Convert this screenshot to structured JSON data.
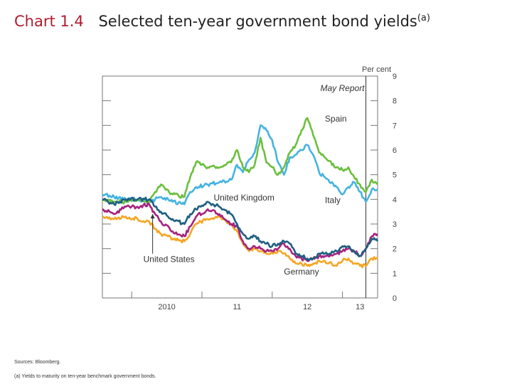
{
  "title": {
    "number": "Chart 1.4",
    "text": "Selected ten-year government bond yields",
    "superscript": "(a)"
  },
  "source": "Sources: Bloomberg.",
  "footnote": "(a) Yields to maturity on ten-year benchmark government bonds.",
  "chart_data": {
    "type": "line",
    "ylabel": "Per cent",
    "ylim": [
      0,
      9
    ],
    "yticks": [
      "0",
      "1",
      "2",
      "3",
      "4",
      "5",
      "6",
      "7",
      "8",
      "9"
    ],
    "x_range": [
      "2009-08",
      "2013-07"
    ],
    "x_ticks": [
      {
        "label": "2010",
        "x": "2010-07"
      },
      {
        "label": "11",
        "x": "2011-07"
      },
      {
        "label": "12",
        "x": "2012-07"
      },
      {
        "label": "13",
        "x": "2013-04"
      }
    ],
    "x_year_boundaries": [
      "2010-01",
      "2011-01",
      "2012-01",
      "2013-01"
    ],
    "grid": false,
    "colors": {
      "Spain": "#6cbf3e",
      "Italy": "#45b3e0",
      "United Kingdom": "#1f5f82",
      "United States": "#a5247f",
      "Germany": "#f5a623"
    },
    "annotations": [
      {
        "text": "May Report",
        "x": "2013-05",
        "type": "vertical-line"
      }
    ],
    "series": [
      {
        "name": "Spain",
        "x": [
          "2009-08",
          "2009-10",
          "2009-12",
          "2010-02",
          "2010-04",
          "2010-05",
          "2010-06",
          "2010-08",
          "2010-10",
          "2010-11",
          "2010-12",
          "2011-02",
          "2011-04",
          "2011-06",
          "2011-07",
          "2011-08",
          "2011-09",
          "2011-10",
          "2011-11",
          "2011-12",
          "2012-01",
          "2012-02",
          "2012-03",
          "2012-04",
          "2012-05",
          "2012-06",
          "2012-07",
          "2012-08",
          "2012-09",
          "2012-10",
          "2012-12",
          "2013-01",
          "2013-02",
          "2013-03",
          "2013-04",
          "2013-05",
          "2013-06",
          "2013-07"
        ],
        "values": [
          4.0,
          3.9,
          3.9,
          4.0,
          3.9,
          4.3,
          4.6,
          4.2,
          4.1,
          4.9,
          5.5,
          5.3,
          5.3,
          5.5,
          6.0,
          5.3,
          5.1,
          5.4,
          6.5,
          5.5,
          5.3,
          5.0,
          5.3,
          5.9,
          6.2,
          6.8,
          7.3,
          6.6,
          5.9,
          5.7,
          5.3,
          5.2,
          5.3,
          4.9,
          4.6,
          4.3,
          4.8,
          4.6
        ]
      },
      {
        "name": "Italy",
        "x": [
          "2009-08",
          "2009-10",
          "2009-12",
          "2010-02",
          "2010-04",
          "2010-05",
          "2010-06",
          "2010-08",
          "2010-10",
          "2010-11",
          "2010-12",
          "2011-02",
          "2011-04",
          "2011-06",
          "2011-07",
          "2011-08",
          "2011-09",
          "2011-10",
          "2011-11",
          "2011-12",
          "2012-01",
          "2012-02",
          "2012-03",
          "2012-04",
          "2012-05",
          "2012-06",
          "2012-07",
          "2012-08",
          "2012-09",
          "2012-10",
          "2012-12",
          "2013-01",
          "2013-02",
          "2013-03",
          "2013-04",
          "2013-05",
          "2013-06",
          "2013-07"
        ],
        "values": [
          4.2,
          4.1,
          4.0,
          4.0,
          3.9,
          4.0,
          4.1,
          3.9,
          3.8,
          4.3,
          4.5,
          4.6,
          4.7,
          4.8,
          5.4,
          5.1,
          5.6,
          5.9,
          7.0,
          6.8,
          6.4,
          5.5,
          5.0,
          5.7,
          5.8,
          6.0,
          6.2,
          5.8,
          5.1,
          4.9,
          4.5,
          4.2,
          4.5,
          4.7,
          4.3,
          3.9,
          4.4,
          4.4
        ]
      },
      {
        "name": "United Kingdom",
        "x": [
          "2009-08",
          "2009-10",
          "2009-12",
          "2010-02",
          "2010-04",
          "2010-05",
          "2010-06",
          "2010-08",
          "2010-10",
          "2010-11",
          "2010-12",
          "2011-02",
          "2011-04",
          "2011-06",
          "2011-07",
          "2011-08",
          "2011-09",
          "2011-10",
          "2011-11",
          "2011-12",
          "2012-01",
          "2012-02",
          "2012-03",
          "2012-04",
          "2012-05",
          "2012-06",
          "2012-07",
          "2012-08",
          "2012-09",
          "2012-10",
          "2012-12",
          "2013-01",
          "2013-02",
          "2013-03",
          "2013-04",
          "2013-05",
          "2013-06",
          "2013-07"
        ],
        "values": [
          4.0,
          3.8,
          4.0,
          4.0,
          4.0,
          3.7,
          3.5,
          3.2,
          3.0,
          3.4,
          3.6,
          3.9,
          3.7,
          3.4,
          3.0,
          2.6,
          2.4,
          2.5,
          2.3,
          2.2,
          2.1,
          2.2,
          2.3,
          2.2,
          1.8,
          1.7,
          1.6,
          1.6,
          1.8,
          1.8,
          1.9,
          2.1,
          2.1,
          1.9,
          1.7,
          2.0,
          2.4,
          2.3
        ]
      },
      {
        "name": "United States",
        "x": [
          "2009-08",
          "2009-10",
          "2009-12",
          "2010-02",
          "2010-04",
          "2010-05",
          "2010-06",
          "2010-08",
          "2010-10",
          "2010-11",
          "2010-12",
          "2011-02",
          "2011-04",
          "2011-06",
          "2011-07",
          "2011-08",
          "2011-09",
          "2011-10",
          "2011-11",
          "2011-12",
          "2012-01",
          "2012-02",
          "2012-03",
          "2012-04",
          "2012-05",
          "2012-06",
          "2012-07",
          "2012-08",
          "2012-09",
          "2012-10",
          "2012-12",
          "2013-01",
          "2013-02",
          "2013-03",
          "2013-04",
          "2013-05",
          "2013-06",
          "2013-07"
        ],
        "values": [
          3.6,
          3.4,
          3.7,
          3.7,
          3.8,
          3.4,
          3.1,
          2.7,
          2.5,
          2.9,
          3.3,
          3.6,
          3.4,
          3.0,
          2.9,
          2.3,
          2.0,
          2.1,
          2.0,
          1.9,
          1.9,
          2.0,
          2.2,
          2.0,
          1.7,
          1.6,
          1.5,
          1.6,
          1.7,
          1.7,
          1.8,
          1.9,
          2.0,
          1.9,
          1.7,
          2.0,
          2.5,
          2.6
        ]
      },
      {
        "name": "Germany",
        "x": [
          "2009-08",
          "2009-10",
          "2009-12",
          "2010-02",
          "2010-04",
          "2010-05",
          "2010-06",
          "2010-08",
          "2010-10",
          "2010-11",
          "2010-12",
          "2011-02",
          "2011-04",
          "2011-06",
          "2011-07",
          "2011-08",
          "2011-09",
          "2011-10",
          "2011-11",
          "2011-12",
          "2012-01",
          "2012-02",
          "2012-03",
          "2012-04",
          "2012-05",
          "2012-06",
          "2012-07",
          "2012-08",
          "2012-09",
          "2012-10",
          "2012-12",
          "2013-01",
          "2013-02",
          "2013-03",
          "2013-04",
          "2013-05",
          "2013-06",
          "2013-07"
        ],
        "values": [
          3.3,
          3.2,
          3.3,
          3.2,
          3.1,
          2.8,
          2.6,
          2.4,
          2.3,
          2.6,
          3.0,
          3.2,
          3.3,
          3.0,
          2.7,
          2.2,
          1.9,
          2.0,
          1.9,
          1.8,
          1.8,
          1.9,
          1.8,
          1.6,
          1.4,
          1.4,
          1.3,
          1.4,
          1.5,
          1.5,
          1.3,
          1.5,
          1.6,
          1.4,
          1.3,
          1.3,
          1.6,
          1.6
        ]
      }
    ],
    "series_labels": [
      {
        "series": "Spain",
        "text": "Spain",
        "anchor": "2012-10",
        "value": 7.15
      },
      {
        "series": "Italy",
        "text": "Italy",
        "anchor": "2012-10",
        "value": 3.85
      },
      {
        "series": "United Kingdom",
        "text": "United Kingdom",
        "anchor": "2011-03",
        "value": 3.95
      },
      {
        "series": "Germany",
        "text": "Germany",
        "anchor": "2012-03",
        "value": 0.95
      },
      {
        "series": "United States",
        "text": "United States",
        "anchor": "2010-03",
        "value": 1.45
      }
    ]
  }
}
